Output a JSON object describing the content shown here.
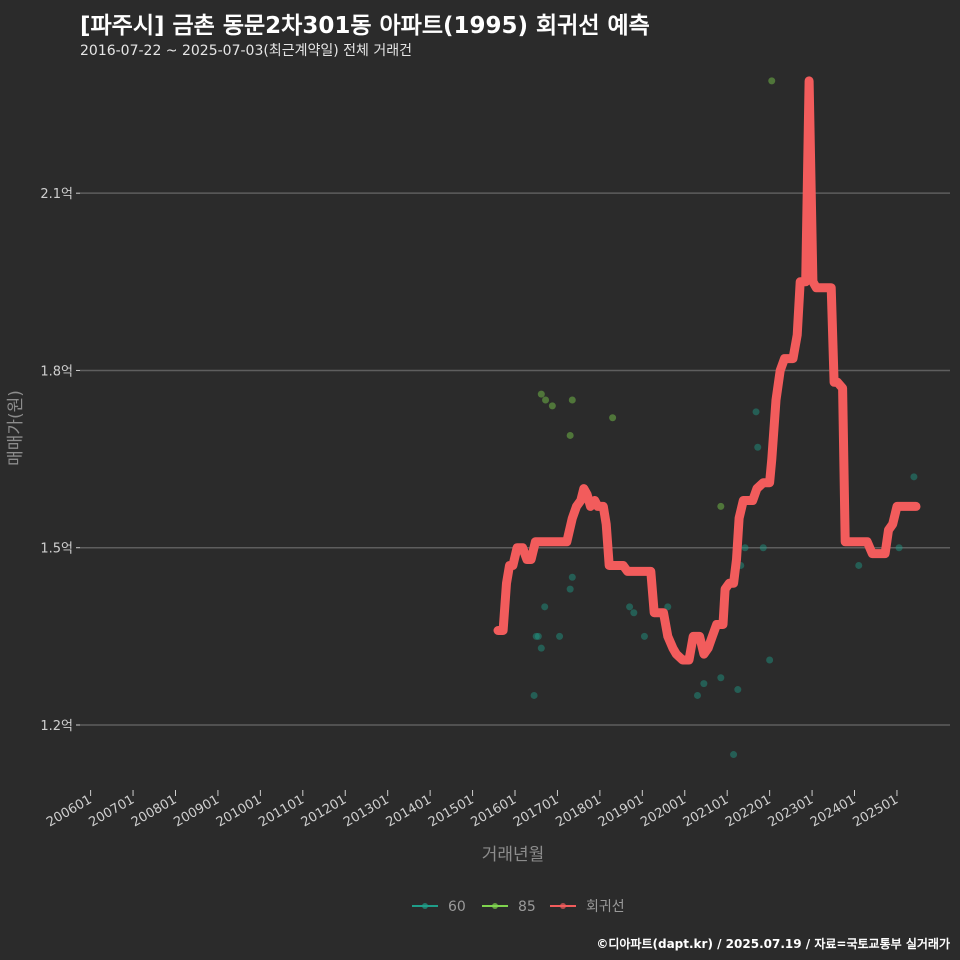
{
  "title": "[파주시] 금촌 동문2차301동 아파트(1995) 회귀선 예측",
  "subtitle": "2016-07-22 ~ 2025-07-03(최근계약일) 전체 거래건",
  "footer": "©디아파트(dapt.kr) / 2025.07.19 / 자료=국토교통부 실거래가",
  "chart_data": {
    "type": "scatter",
    "xlabel": "거래년월",
    "ylabel": "매매가(원)",
    "x_ticks": [
      "200601",
      "200701",
      "200801",
      "200901",
      "201001",
      "201101",
      "201201",
      "201301",
      "201401",
      "201501",
      "201601",
      "201701",
      "201801",
      "201901",
      "202001",
      "202101",
      "202201",
      "202301",
      "202401",
      "202501"
    ],
    "y_ticks": [
      {
        "value": 1.2,
        "label": "1.2억"
      },
      {
        "value": 1.5,
        "label": "1.5억"
      },
      {
        "value": 1.8,
        "label": "1.8억"
      },
      {
        "value": 2.1,
        "label": "2.1억"
      }
    ],
    "xlim": [
      2005.75,
      2026.25
    ],
    "ylim": [
      1.09,
      2.3
    ],
    "grid": "horizontal",
    "legend_position": "bottom",
    "colors": {
      "60": "#1f9e89",
      "85": "#7fd34e",
      "regression": "#f25c5c"
    },
    "series": [
      {
        "name": "60",
        "type": "scatter",
        "points": [
          [
            2016.45,
            1.25
          ],
          [
            2016.5,
            1.35
          ],
          [
            2016.55,
            1.35
          ],
          [
            2016.62,
            1.33
          ],
          [
            2016.7,
            1.4
          ],
          [
            2017.05,
            1.35
          ],
          [
            2017.3,
            1.43
          ],
          [
            2017.35,
            1.45
          ],
          [
            2018.7,
            1.4
          ],
          [
            2018.8,
            1.39
          ],
          [
            2019.05,
            1.35
          ],
          [
            2019.6,
            1.4
          ],
          [
            2020.3,
            1.25
          ],
          [
            2020.45,
            1.27
          ],
          [
            2020.85,
            1.28
          ],
          [
            2021.15,
            1.15
          ],
          [
            2021.25,
            1.26
          ],
          [
            2021.32,
            1.47
          ],
          [
            2021.42,
            1.5
          ],
          [
            2021.68,
            1.73
          ],
          [
            2021.72,
            1.67
          ],
          [
            2021.85,
            1.5
          ],
          [
            2022.0,
            1.31
          ],
          [
            2024.1,
            1.47
          ],
          [
            2025.05,
            1.5
          ],
          [
            2025.4,
            1.62
          ]
        ]
      },
      {
        "name": "85",
        "type": "scatter",
        "points": [
          [
            2016.62,
            1.76
          ],
          [
            2016.72,
            1.75
          ],
          [
            2016.88,
            1.74
          ],
          [
            2017.3,
            1.69
          ],
          [
            2017.35,
            1.75
          ],
          [
            2018.3,
            1.72
          ],
          [
            2020.85,
            1.57
          ],
          [
            2022.05,
            2.29
          ]
        ]
      },
      {
        "name": "회귀선",
        "type": "line",
        "points": [
          [
            2015.6,
            1.36
          ],
          [
            2015.72,
            1.36
          ],
          [
            2015.8,
            1.44
          ],
          [
            2015.87,
            1.47
          ],
          [
            2015.95,
            1.47
          ],
          [
            2016.05,
            1.5
          ],
          [
            2016.18,
            1.5
          ],
          [
            2016.28,
            1.48
          ],
          [
            2016.38,
            1.48
          ],
          [
            2016.48,
            1.51
          ],
          [
            2016.6,
            1.51
          ],
          [
            2017.22,
            1.51
          ],
          [
            2017.35,
            1.55
          ],
          [
            2017.45,
            1.57
          ],
          [
            2017.55,
            1.58
          ],
          [
            2017.62,
            1.6
          ],
          [
            2017.7,
            1.59
          ],
          [
            2017.78,
            1.57
          ],
          [
            2017.88,
            1.58
          ],
          [
            2017.95,
            1.57
          ],
          [
            2018.08,
            1.57
          ],
          [
            2018.15,
            1.54
          ],
          [
            2018.22,
            1.47
          ],
          [
            2018.55,
            1.47
          ],
          [
            2018.65,
            1.46
          ],
          [
            2019.2,
            1.46
          ],
          [
            2019.28,
            1.39
          ],
          [
            2019.5,
            1.39
          ],
          [
            2019.6,
            1.35
          ],
          [
            2019.72,
            1.33
          ],
          [
            2019.8,
            1.32
          ],
          [
            2019.95,
            1.31
          ],
          [
            2020.1,
            1.31
          ],
          [
            2020.2,
            1.35
          ],
          [
            2020.35,
            1.35
          ],
          [
            2020.45,
            1.32
          ],
          [
            2020.55,
            1.33
          ],
          [
            2020.65,
            1.35
          ],
          [
            2020.75,
            1.37
          ],
          [
            2020.9,
            1.37
          ],
          [
            2020.95,
            1.43
          ],
          [
            2021.05,
            1.44
          ],
          [
            2021.15,
            1.44
          ],
          [
            2021.22,
            1.48
          ],
          [
            2021.28,
            1.55
          ],
          [
            2021.38,
            1.58
          ],
          [
            2021.6,
            1.58
          ],
          [
            2021.7,
            1.6
          ],
          [
            2021.85,
            1.61
          ],
          [
            2022.0,
            1.61
          ],
          [
            2022.05,
            1.65
          ],
          [
            2022.15,
            1.75
          ],
          [
            2022.25,
            1.8
          ],
          [
            2022.35,
            1.82
          ],
          [
            2022.55,
            1.82
          ],
          [
            2022.65,
            1.86
          ],
          [
            2022.72,
            1.95
          ],
          [
            2022.85,
            1.95
          ],
          [
            2022.93,
            2.29
          ],
          [
            2023.02,
            1.95
          ],
          [
            2023.1,
            1.94
          ],
          [
            2023.3,
            1.94
          ],
          [
            2023.45,
            1.94
          ],
          [
            2023.52,
            1.78
          ],
          [
            2023.6,
            1.78
          ],
          [
            2023.72,
            1.77
          ],
          [
            2023.78,
            1.51
          ],
          [
            2024.3,
            1.51
          ],
          [
            2024.42,
            1.49
          ],
          [
            2024.6,
            1.49
          ],
          [
            2024.72,
            1.49
          ],
          [
            2024.8,
            1.53
          ],
          [
            2024.9,
            1.54
          ],
          [
            2025.0,
            1.57
          ],
          [
            2025.45,
            1.57
          ]
        ]
      }
    ]
  }
}
